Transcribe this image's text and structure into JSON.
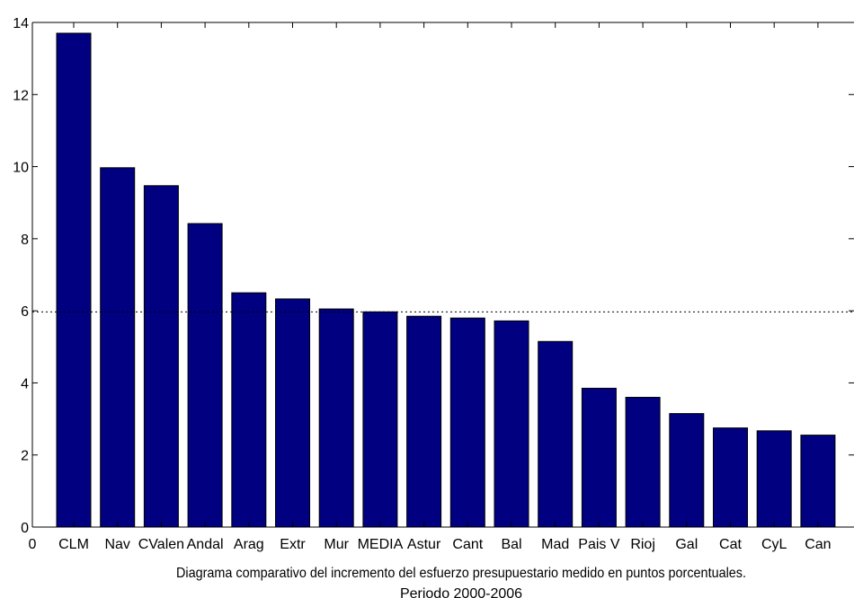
{
  "chart_data": {
    "type": "bar",
    "title": "",
    "xlabel": "Diagrama comparativo del incremento del esfuerzo presupuestario medido en puntos porcentuales.",
    "subtitle": "Periodo 2000-2006",
    "ylabel": "",
    "ylim": [
      0,
      14
    ],
    "yticks": [
      0,
      2,
      4,
      6,
      8,
      10,
      12,
      14
    ],
    "x_origin_label": "0",
    "categories": [
      "CLM",
      "Nav",
      "CValen",
      "Andal",
      "Arag",
      "Extr",
      "Mur",
      "MEDIA",
      "Astur",
      "Cant",
      "Bal",
      "Mad",
      "Pais V",
      "Rioj",
      "Gal",
      "Cat",
      "CyL",
      "Can"
    ],
    "values": [
      13.7,
      9.97,
      9.47,
      8.42,
      6.5,
      6.33,
      6.05,
      5.97,
      5.85,
      5.8,
      5.72,
      5.15,
      3.85,
      3.6,
      3.15,
      2.75,
      2.67,
      2.55
    ],
    "reference_line": 5.97,
    "grid": false,
    "bar_color": "#000080"
  }
}
